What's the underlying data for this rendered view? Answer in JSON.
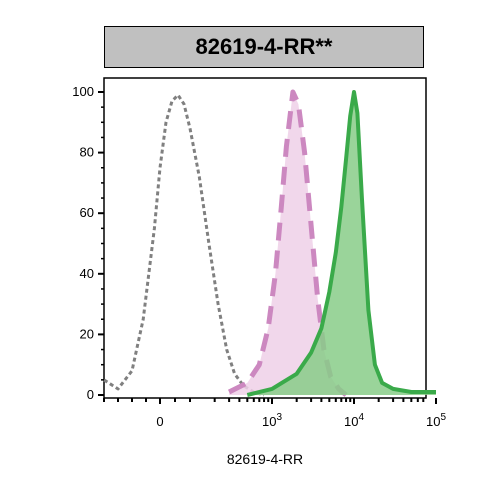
{
  "chart_data": {
    "type": "area",
    "title": "82619-4-RR**",
    "xlabel": "82619-4-RR",
    "ylabel": "",
    "x_scale": "biexponential",
    "ylim": [
      0,
      100
    ],
    "y_ticks": [
      "0",
      "20",
      "40",
      "60",
      "80",
      "100"
    ],
    "x_ticks": [
      {
        "value": 0,
        "base": "0",
        "exp": ""
      },
      {
        "value": 1000,
        "base": "10",
        "exp": "3"
      },
      {
        "value": 10000,
        "base": "10",
        "exp": "4"
      },
      {
        "value": 100000,
        "base": "10",
        "exp": "5"
      }
    ],
    "grid": false,
    "legend": "none",
    "series": [
      {
        "style": "gray dotted outline, unfilled",
        "color": "#808080",
        "x": [
          -200,
          -150,
          -100,
          -60,
          -20,
          0,
          20,
          40,
          60,
          80,
          100,
          130,
          170,
          220,
          280,
          350,
          450,
          600,
          800
        ],
        "y": [
          5,
          2,
          8,
          25,
          55,
          75,
          90,
          97,
          99,
          96,
          88,
          72,
          50,
          30,
          15,
          7,
          3,
          1,
          0
        ]
      },
      {
        "style": "pink dashed outline, light pink fill",
        "color": "#cc88c0",
        "fill": "#eed0e8",
        "x": [
          300,
          500,
          700,
          900,
          1100,
          1300,
          1500,
          1800,
          2100,
          2500,
          3000,
          3600,
          4300,
          5200,
          6500,
          8000
        ],
        "y": [
          1,
          4,
          10,
          22,
          40,
          62,
          82,
          100,
          96,
          80,
          56,
          32,
          15,
          6,
          2,
          0
        ]
      },
      {
        "style": "green solid outline, light green fill",
        "color": "#3aaa4a",
        "fill": "#88cc88",
        "x": [
          500,
          1000,
          2000,
          3000,
          4000,
          5000,
          6000,
          7000,
          8000,
          9000,
          10000,
          11000,
          12500,
          15000,
          18000,
          22000,
          30000,
          50000,
          100000
        ],
        "y": [
          0,
          2,
          7,
          14,
          22,
          34,
          47,
          62,
          78,
          92,
          100,
          93,
          65,
          28,
          10,
          4,
          2,
          1,
          1
        ]
      }
    ]
  }
}
